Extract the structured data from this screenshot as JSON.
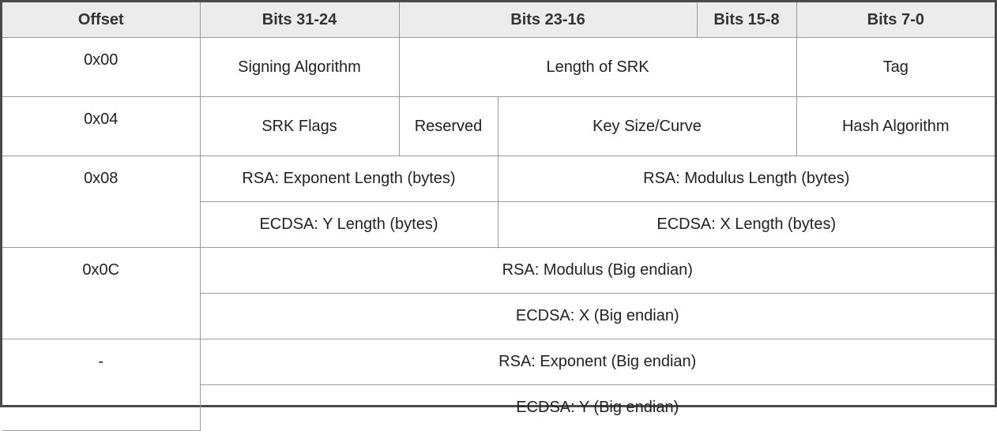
{
  "header": {
    "offset": "Offset",
    "bits_31_24": "Bits 31-24",
    "bits_23_16": "Bits 23-16",
    "bits_15_8": "Bits 15-8",
    "bits_7_0": "Bits 7-0"
  },
  "rows": {
    "r00": {
      "offset": "0x00",
      "signing_algorithm": "Signing Algorithm",
      "length_of_srk": "Length of SRK",
      "tag": "Tag"
    },
    "r04": {
      "offset": "0x04",
      "srk_flags": "SRK Flags",
      "reserved": "Reserved",
      "key_size_curve": "Key Size/Curve",
      "hash_algorithm": "Hash Algorithm"
    },
    "r08": {
      "offset": "0x08",
      "rsa_exponent_length": "RSA: Exponent Length (bytes)",
      "rsa_modulus_length": "RSA: Modulus Length (bytes)",
      "ecdsa_y_length": "ECDSA: Y Length (bytes)",
      "ecdsa_x_length": "ECDSA: X Length (bytes)"
    },
    "r0c": {
      "offset": "0x0C",
      "rsa_modulus": "RSA: Modulus (Big endian)",
      "ecdsa_x": "ECDSA: X (Big endian)"
    },
    "rdash": {
      "offset": "-",
      "rsa_exponent": "RSA: Exponent (Big endian)",
      "ecdsa_y": "ECDSA: Y (Big endian)"
    }
  }
}
